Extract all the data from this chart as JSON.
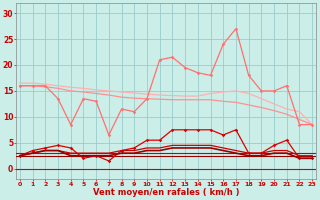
{
  "x": [
    0,
    1,
    2,
    3,
    4,
    5,
    6,
    7,
    8,
    9,
    10,
    11,
    12,
    13,
    14,
    15,
    16,
    17,
    18,
    19,
    20,
    21,
    22,
    23
  ],
  "line1_smooth": [
    16.5,
    16.5,
    16.3,
    16.0,
    15.7,
    15.5,
    15.2,
    15.0,
    14.8,
    14.6,
    14.4,
    14.2,
    14.1,
    14.0,
    14.0,
    14.5,
    14.8,
    15.0,
    14.5,
    13.5,
    12.5,
    11.5,
    11.0,
    8.5
  ],
  "line2_smooth": [
    16.0,
    16.0,
    15.8,
    15.5,
    15.0,
    14.8,
    14.5,
    14.2,
    13.8,
    13.6,
    13.5,
    13.4,
    13.3,
    13.3,
    13.3,
    13.3,
    13.0,
    12.8,
    12.3,
    11.8,
    11.2,
    10.5,
    9.5,
    8.5
  ],
  "line3_wiggly": [
    16.0,
    16.0,
    16.0,
    13.5,
    8.5,
    13.5,
    13.0,
    6.5,
    11.5,
    11.0,
    13.5,
    21.0,
    21.5,
    19.5,
    18.5,
    18.0,
    24.0,
    27.0,
    18.0,
    15.0,
    15.0,
    16.0,
    8.5,
    8.5
  ],
  "line4_bottom": [
    2.5,
    3.5,
    4.0,
    4.5,
    4.0,
    2.0,
    2.5,
    1.5,
    3.5,
    4.0,
    5.5,
    5.5,
    7.5,
    7.5,
    7.5,
    7.5,
    6.5,
    7.5,
    3.0,
    3.0,
    4.5,
    5.5,
    2.0,
    2.0
  ],
  "line5_flat1": [
    2.5,
    3.0,
    3.5,
    3.5,
    3.0,
    3.0,
    3.0,
    3.0,
    3.5,
    3.5,
    4.0,
    4.0,
    4.5,
    4.5,
    4.5,
    4.5,
    4.0,
    3.5,
    3.0,
    3.0,
    3.5,
    3.5,
    2.5,
    2.5
  ],
  "line6_flat2": [
    2.5,
    3.0,
    3.5,
    3.5,
    2.5,
    2.5,
    2.5,
    2.5,
    3.0,
    3.0,
    3.5,
    3.5,
    4.0,
    4.0,
    4.0,
    4.0,
    3.5,
    3.0,
    2.5,
    2.5,
    3.0,
    3.0,
    2.0,
    2.0
  ],
  "colors": {
    "line1": "#ffb0b0",
    "line2": "#ff9090",
    "line3": "#ff7070",
    "line4": "#dd0000",
    "line5": "#cc0000",
    "line6": "#990000"
  },
  "bg_color": "#cceee8",
  "grid_color": "#99cccc",
  "xlabel": "Vent moyen/en rafales ( km/h )",
  "ylim": [
    -2,
    32
  ],
  "xlim": [
    -0.3,
    23.3
  ],
  "yticks": [
    0,
    5,
    10,
    15,
    20,
    25,
    30
  ],
  "xticks": [
    0,
    1,
    2,
    3,
    4,
    5,
    6,
    7,
    8,
    9,
    10,
    11,
    12,
    13,
    14,
    15,
    16,
    17,
    18,
    19,
    20,
    21,
    22,
    23
  ]
}
